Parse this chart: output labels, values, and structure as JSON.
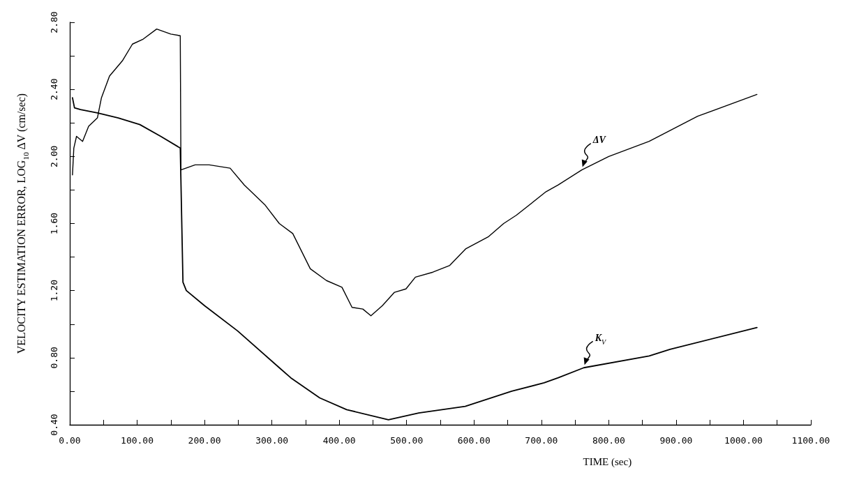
{
  "chart_data": {
    "type": "line",
    "xlabel": "TIME (sec)",
    "ylabel": "VELOCITY ESTIMATION ERROR, LOG$_{10}$ ΔV (cm/sec)",
    "xlim": [
      0,
      1100
    ],
    "ylim": [
      0.4,
      2.8
    ],
    "xticks": [
      {
        "value": 0,
        "label": "0.00"
      },
      {
        "value": 50,
        "label": null
      },
      {
        "value": 100,
        "label": "100.00"
      },
      {
        "value": 150,
        "label": null
      },
      {
        "value": 200,
        "label": "200.00"
      },
      {
        "value": 250,
        "label": null
      },
      {
        "value": 300,
        "label": "300.00"
      },
      {
        "value": 350,
        "label": null
      },
      {
        "value": 400,
        "label": "400.00"
      },
      {
        "value": 450,
        "label": null
      },
      {
        "value": 500,
        "label": "500.00"
      },
      {
        "value": 550,
        "label": null
      },
      {
        "value": 600,
        "label": "600.00"
      },
      {
        "value": 650,
        "label": null
      },
      {
        "value": 700,
        "label": "700.00"
      },
      {
        "value": 750,
        "label": null
      },
      {
        "value": 800,
        "label": "800.00"
      },
      {
        "value": 850,
        "label": null
      },
      {
        "value": 900,
        "label": "900.00"
      },
      {
        "value": 950,
        "label": null
      },
      {
        "value": 1000,
        "label": "1000.00"
      },
      {
        "value": 1050,
        "label": null
      },
      {
        "value": 1100,
        "label": "1100.00"
      }
    ],
    "yticks": [
      {
        "value": 0.4,
        "label": "0.40"
      },
      {
        "value": 0.6,
        "label": null
      },
      {
        "value": 0.8,
        "label": "0.80"
      },
      {
        "value": 1.0,
        "label": null
      },
      {
        "value": 1.2,
        "label": "1.20"
      },
      {
        "value": 1.4,
        "label": null
      },
      {
        "value": 1.6,
        "label": "1.60"
      },
      {
        "value": 1.8,
        "label": null
      },
      {
        "value": 2.0,
        "label": "2.00"
      },
      {
        "value": 2.2,
        "label": null
      },
      {
        "value": 2.4,
        "label": "2.40"
      },
      {
        "value": 2.6,
        "label": null
      },
      {
        "value": 2.8,
        "label": "2.80"
      }
    ],
    "grid": false,
    "marker": "none",
    "line_style": "solid",
    "series": [
      {
        "color": "#000000",
        "x": [
          4,
          6,
          10,
          19,
          28,
          41,
          47,
          59,
          78,
          93,
          109,
          129,
          150,
          164,
          165,
          186,
          207,
          238,
          259,
          290,
          311,
          331,
          357,
          381,
          404,
          419,
          435,
          447,
          464,
          482,
          499,
          513,
          539,
          564,
          588,
          621,
          644,
          663,
          707,
          725,
          760,
          800,
          860,
          932,
          1020
        ],
        "values": [
          1.89,
          2.05,
          2.12,
          2.09,
          2.18,
          2.23,
          2.35,
          2.48,
          2.57,
          2.67,
          2.7,
          2.76,
          2.73,
          2.72,
          1.92,
          1.95,
          1.95,
          1.93,
          1.83,
          1.71,
          1.6,
          1.54,
          1.33,
          1.26,
          1.22,
          1.1,
          1.09,
          1.05,
          1.11,
          1.19,
          1.21,
          1.28,
          1.31,
          1.35,
          1.45,
          1.52,
          1.6,
          1.65,
          1.79,
          1.83,
          1.92,
          2.0,
          2.09,
          2.24,
          2.37
        ]
      },
      {
        "color": "#000000",
        "x": [
          4,
          7,
          16,
          41,
          72,
          104,
          135,
          164,
          168,
          173,
          200,
          249,
          311,
          328,
          371,
          411,
          473,
          518,
          587,
          656,
          704,
          725,
          763,
          860,
          891,
          1020
        ],
        "values": [
          2.35,
          2.29,
          2.28,
          2.26,
          2.23,
          2.19,
          2.12,
          2.05,
          1.25,
          1.2,
          1.11,
          0.96,
          0.74,
          0.68,
          0.56,
          0.49,
          0.43,
          0.47,
          0.51,
          0.6,
          0.65,
          0.68,
          0.74,
          0.81,
          0.85,
          0.98
        ]
      }
    ],
    "annotations": [
      {
        "text": "ΔV",
        "x": 760,
        "y": 1.92
      },
      {
        "text": "K$_{V}$",
        "x": 763,
        "y": 0.74
      }
    ]
  }
}
